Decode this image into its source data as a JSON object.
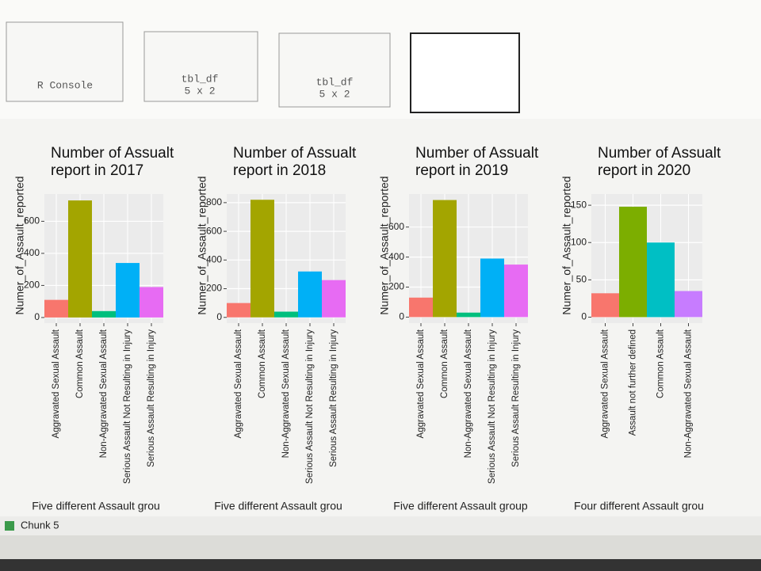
{
  "console": {
    "label": "R Console"
  },
  "objects": [
    {
      "name": "tbl_df",
      "size": "5 x 2"
    },
    {
      "name": "tbl_df",
      "size": "5 x 2"
    }
  ],
  "status": {
    "chunk": "Chunk 5"
  },
  "chart_data": [
    {
      "type": "bar",
      "title": "Number of Assualt report in 2017",
      "x_label": "Five different Assault grou",
      "y_label": "Numer_of_Assault_reported",
      "categories": [
        "Aggravated Sexual Assault",
        "Common Assault",
        "Non-Aggravated Sexual Assault",
        "Serious Assault Not Resulting in Injury",
        "Serious Assault Resulting in Injury"
      ],
      "values": [
        110,
        730,
        40,
        340,
        190
      ],
      "colors": [
        "#F8766D",
        "#A3A500",
        "#00BF7D",
        "#00B0F6",
        "#E76BF3"
      ],
      "ylim": [
        -35,
        770
      ],
      "yticks": [
        0,
        200,
        400,
        600
      ],
      "grid": true
    },
    {
      "type": "bar",
      "title": "Number of Assualt report in 2018",
      "x_label": "Five different Assault grou",
      "y_label": "Numer_of_Assault_reported",
      "categories": [
        "Aggravated Sexual Assault",
        "Common Assault",
        "Non-Aggravated Sexual Assault",
        "Serious Assault Not Resulting in Injury",
        "Serious Assault Resulting in Injury"
      ],
      "values": [
        100,
        820,
        40,
        320,
        260
      ],
      "colors": [
        "#F8766D",
        "#A3A500",
        "#00BF7D",
        "#00B0F6",
        "#E76BF3"
      ],
      "ylim": [
        -40,
        860
      ],
      "yticks": [
        0,
        200,
        400,
        600,
        800
      ],
      "grid": true
    },
    {
      "type": "bar",
      "title": "Number of Assualt report in 2019",
      "x_label": "Five different Assault group",
      "y_label": "Numer_of_Assault_reported",
      "categories": [
        "Aggravated Sexual Assault",
        "Common Assault",
        "Non-Aggravated Sexual Assault",
        "Serious Assault Not Resulting in Injury",
        "Serious Assault Resulting in Injury"
      ],
      "values": [
        130,
        780,
        30,
        390,
        350
      ],
      "colors": [
        "#F8766D",
        "#A3A500",
        "#00BF7D",
        "#00B0F6",
        "#E76BF3"
      ],
      "ylim": [
        -40,
        820
      ],
      "yticks": [
        0,
        200,
        400,
        600
      ],
      "grid": true
    },
    {
      "type": "bar",
      "title": "Number of Assualt report in 2020",
      "x_label": "Four different Assault grou",
      "y_label": "Numer_of_Assault_reported",
      "categories": [
        "Aggravated Sexual Assault",
        "Assault not further defined",
        "Common Assault",
        "Non-Aggravated Sexual Assault"
      ],
      "values": [
        32,
        148,
        100,
        35
      ],
      "colors": [
        "#F8766D",
        "#7CAE00",
        "#00BFC4",
        "#C77CFF"
      ],
      "ylim": [
        -8,
        165
      ],
      "yticks": [
        0,
        50,
        100,
        150
      ],
      "grid": true
    }
  ]
}
